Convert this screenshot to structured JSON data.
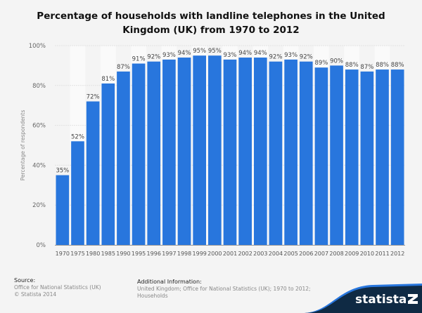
{
  "chart_data": {
    "type": "bar",
    "title": "Percentage of households with landline telephones in the United Kingdom (UK) from 1970 to 2012",
    "ylabel": "Percentage of respondents",
    "xlabel": "",
    "ylim": [
      0,
      100
    ],
    "yticks": [
      "0%",
      "20%",
      "40%",
      "60%",
      "80%",
      "100%"
    ],
    "grid": true,
    "categories": [
      "1970",
      "1975",
      "1980",
      "1985",
      "1990",
      "1995",
      "1996",
      "1997",
      "1998",
      "1999",
      "2000",
      "2001",
      "2002",
      "2003",
      "2004",
      "2005",
      "2006",
      "2007",
      "2008",
      "2009",
      "2010",
      "2011",
      "2012"
    ],
    "values": [
      35,
      52,
      72,
      81,
      87,
      91,
      92,
      93,
      94,
      95,
      95,
      93,
      94,
      94,
      92,
      93,
      92,
      89,
      90,
      88,
      87,
      88,
      88
    ],
    "data_labels": [
      "35%",
      "52%",
      "72%",
      "81%",
      "87%",
      "91%",
      "92%",
      "93%",
      "94%",
      "95%",
      "95%",
      "93%",
      "94%",
      "94%",
      "92%",
      "93%",
      "92%",
      "89%",
      "90%",
      "88%",
      "87%",
      "88%",
      "88%"
    ],
    "bar_color": "#2876dd"
  },
  "footer": {
    "source_heading": "Source:",
    "source_line1": "Office for National Statistics (UK)",
    "source_line2": "© Statista 2014",
    "info_heading": "Additional Information:",
    "info_line1": "United Kingdom; Office for National Statistics (UK); 1970 to 2012;",
    "info_line2": "Households"
  },
  "brand": {
    "name": "statista",
    "color": "#0f2a44",
    "accent": "#2876dd"
  }
}
